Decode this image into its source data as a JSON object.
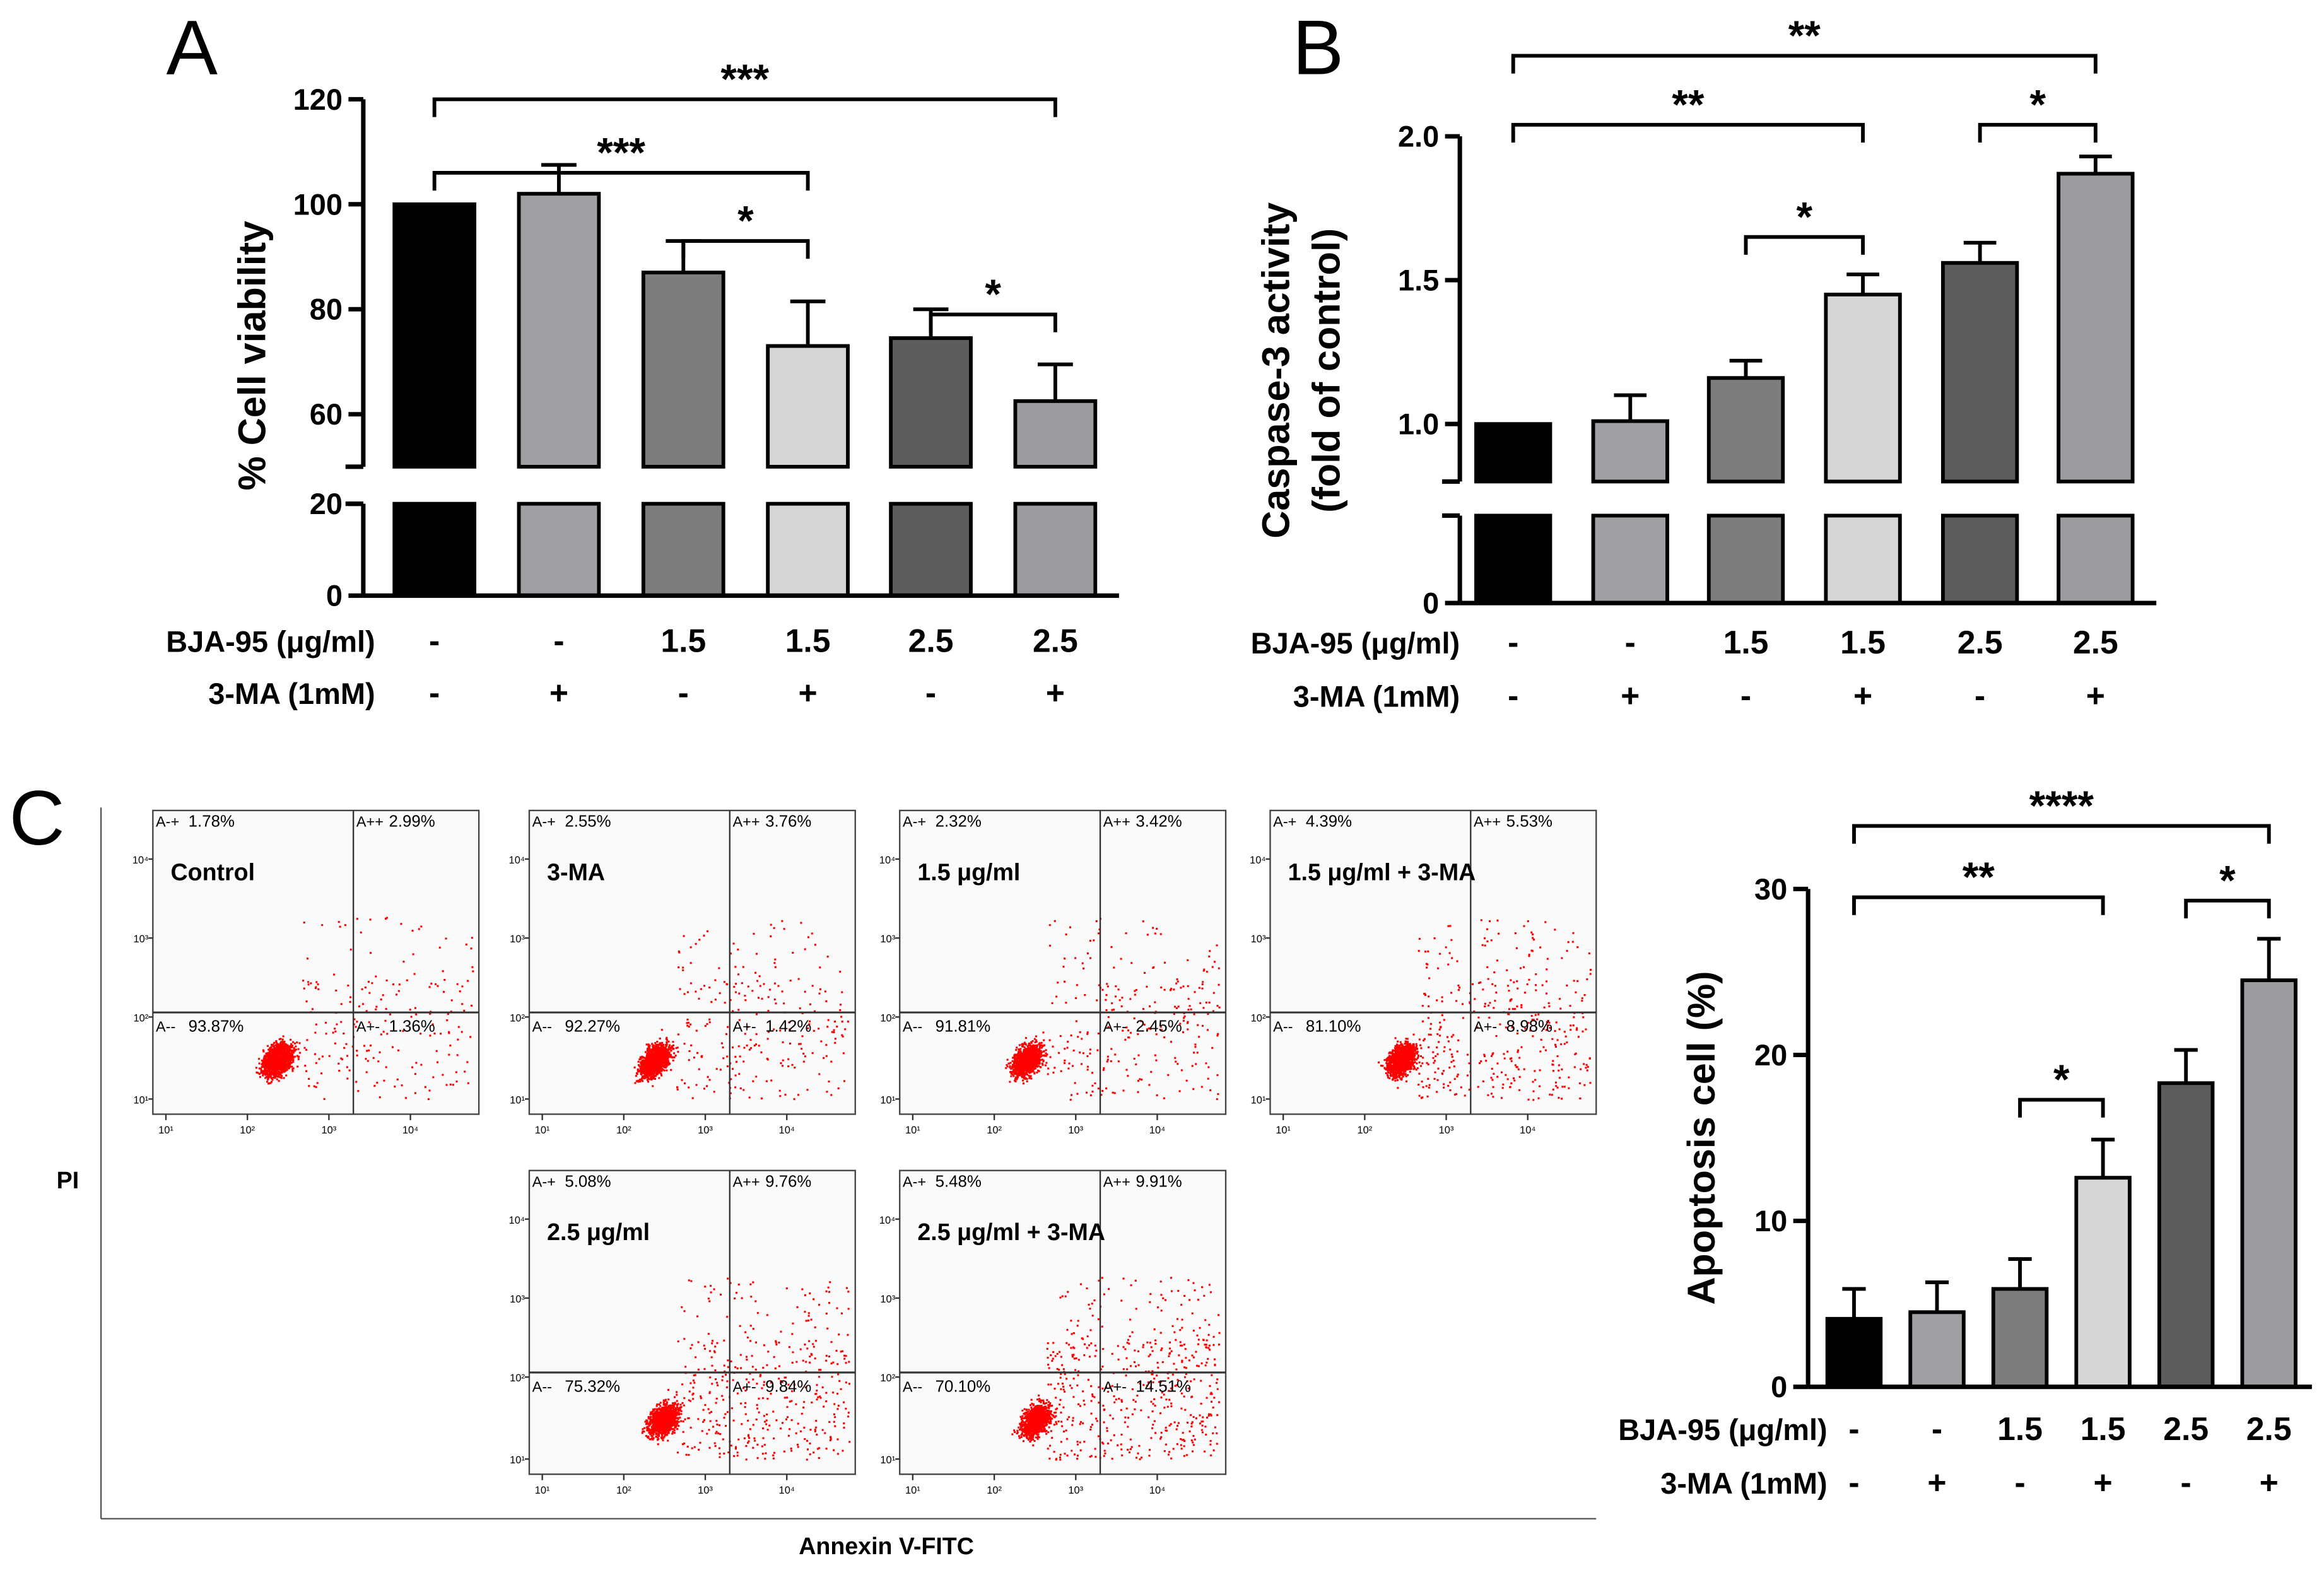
{
  "panel_letters": [
    "A",
    "B",
    "C"
  ],
  "chart_data": [
    {
      "id": "A",
      "type": "bar",
      "ylabel": "% Cell viability",
      "yticks": [
        "0",
        "20",
        "60",
        "80",
        "100",
        "120"
      ],
      "ytick_values": [
        0,
        20,
        60,
        80,
        100,
        120
      ],
      "ylim_lower": [
        0,
        20
      ],
      "ylim_upper": [
        50,
        120
      ],
      "axis_break": true,
      "row_labels": [
        "BJA-95 (μg/ml)",
        "3-MA (1mM)"
      ],
      "categories_bja": [
        "-",
        "-",
        "1.5",
        "1.5",
        "2.5",
        "2.5"
      ],
      "categories_3ma": [
        "-",
        "+",
        "-",
        "+",
        "-",
        "+"
      ],
      "values": [
        100,
        102,
        87,
        73,
        74.5,
        62.5
      ],
      "errors": [
        0,
        5.5,
        6,
        8.5,
        5.5,
        7
      ],
      "colors": [
        "#000000",
        "#a0a0a4",
        "#7d7d7d",
        "#d6d6d6",
        "#5c5c5c",
        "#9c9ca0"
      ],
      "significance": [
        {
          "from": 0,
          "to": 5,
          "label": "***",
          "level": 120
        },
        {
          "from": 0,
          "to": 3,
          "label": "***",
          "level": 106
        },
        {
          "from": 2,
          "to": 3,
          "label": "*",
          "level": 93
        },
        {
          "from": 4,
          "to": 5,
          "label": "*",
          "level": 79
        }
      ]
    },
    {
      "id": "B",
      "type": "bar",
      "ylabel": [
        "Caspase-3 activity",
        "(fold of control)"
      ],
      "yticks": [
        "0",
        "1.0",
        "1.5",
        "2.0"
      ],
      "ytick_values": [
        0,
        1.0,
        1.5,
        2.0
      ],
      "ylim_lower": [
        0,
        0.3
      ],
      "ylim_upper": [
        0.8,
        2.0
      ],
      "axis_break": true,
      "row_labels": [
        "BJA-95 (μg/ml)",
        "3-MA (1mM)"
      ],
      "categories_bja": [
        "-",
        "-",
        "1.5",
        "1.5",
        "2.5",
        "2.5"
      ],
      "categories_3ma": [
        "-",
        "+",
        "-",
        "+",
        "-",
        "+"
      ],
      "values": [
        1.0,
        1.01,
        1.16,
        1.45,
        1.56,
        1.87
      ],
      "errors": [
        0,
        0.09,
        0.06,
        0.07,
        0.07,
        0.06
      ],
      "colors": [
        "#000000",
        "#a0a0a4",
        "#7d7d7d",
        "#d6d6d6",
        "#5c5c5c",
        "#9c9ca0"
      ],
      "significance": [
        {
          "from": 0,
          "to": 5,
          "label": "**",
          "level": 2.28
        },
        {
          "from": 0,
          "to": 3,
          "label": "**",
          "level": 2.04
        },
        {
          "from": 2,
          "to": 3,
          "label": "*",
          "level": 1.65
        },
        {
          "from": 4,
          "to": 5,
          "label": "*",
          "level": 2.04
        }
      ]
    },
    {
      "id": "C-bar",
      "type": "bar",
      "ylabel": "Apoptosis cell (%)",
      "yticks": [
        "0",
        "10",
        "20",
        "30"
      ],
      "ytick_values": [
        0,
        10,
        20,
        30
      ],
      "ylim": [
        0,
        30
      ],
      "axis_break": false,
      "row_labels": [
        "BJA-95 (μg/ml)",
        "3-MA (1mM)"
      ],
      "categories_bja": [
        "-",
        "-",
        "1.5",
        "1.5",
        "2.5",
        "2.5"
      ],
      "categories_3ma": [
        "-",
        "+",
        "-",
        "+",
        "-",
        "+"
      ],
      "values": [
        4.1,
        4.5,
        5.9,
        12.6,
        18.3,
        24.5
      ],
      "errors": [
        1.8,
        1.8,
        1.8,
        2.3,
        2.0,
        2.5
      ],
      "colors": [
        "#000000",
        "#a0a0a4",
        "#7d7d7d",
        "#d6d6d6",
        "#5c5c5c",
        "#9c9ca0"
      ],
      "significance": [
        {
          "from": 0,
          "to": 5,
          "label": "****",
          "level": 33.8
        },
        {
          "from": 0,
          "to": 3,
          "label": "**",
          "level": 29.5
        },
        {
          "from": 2,
          "to": 3,
          "label": "*",
          "level": 17.3
        },
        {
          "from": 4,
          "to": 5,
          "label": "*",
          "level": 29.3
        }
      ]
    },
    {
      "id": "C-flow",
      "type": "scatter",
      "xlabel": "Annexin V-FITC",
      "ylabel": "PI",
      "axis_ticks": [
        "10¹",
        "10²",
        "10³",
        "10⁴"
      ],
      "quadrant_names": [
        "A-+",
        "A++",
        "A--",
        "A+-"
      ],
      "point_color": "#ff0000",
      "panels": [
        {
          "title": "Control",
          "quadrants": [
            "1.78%",
            "2.99%",
            "93.87%",
            "1.36%"
          ],
          "spread": 0.0
        },
        {
          "title": "3-MA",
          "quadrants": [
            "2.55%",
            "3.76%",
            "92.27%",
            "1.42%"
          ],
          "spread": 0.1
        },
        {
          "title": "1.5 μg/ml",
          "quadrants": [
            "2.32%",
            "3.42%",
            "91.81%",
            "2.45%"
          ],
          "spread": 0.15
        },
        {
          "title": "1.5 μg/ml + 3-MA",
          "quadrants": [
            "4.39%",
            "5.53%",
            "81.10%",
            "8.98%"
          ],
          "spread": 0.4
        },
        {
          "title": "2.5 μg/ml",
          "quadrants": [
            "5.08%",
            "9.76%",
            "75.32%",
            "9.84%"
          ],
          "spread": 0.55
        },
        {
          "title": "2.5 μg/ml + 3-MA",
          "quadrants": [
            "5.48%",
            "9.91%",
            "70.10%",
            "14.51%"
          ],
          "spread": 0.7
        }
      ]
    }
  ]
}
